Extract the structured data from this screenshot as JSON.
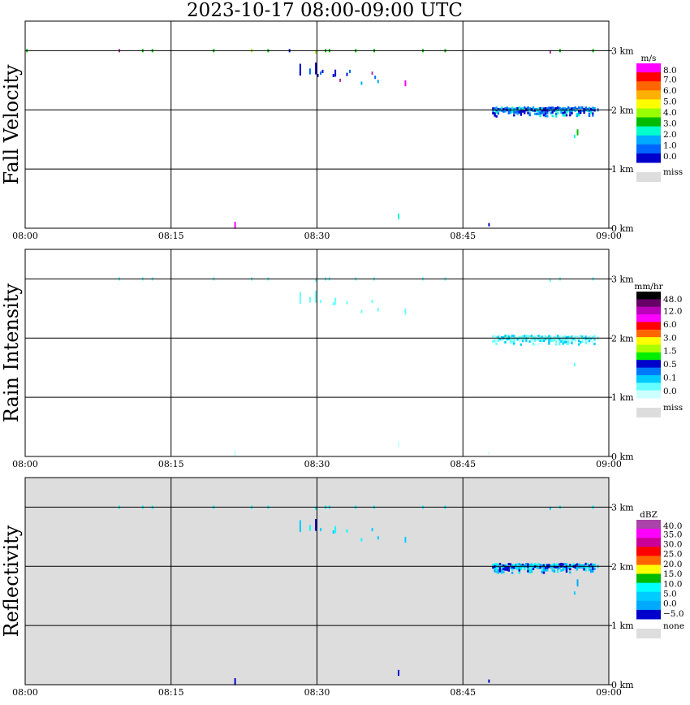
{
  "title": "2023-10-17   08:00-09:00 UTC",
  "x_ticks": [
    "08:00",
    "08:15",
    "08:30",
    "08:45",
    "09:00"
  ],
  "y_ticks": [
    "0 km",
    "1 km",
    "2 km",
    "3 km"
  ],
  "chart_data": [
    {
      "type": "heatmap",
      "ylabel": "Fall Velocity",
      "xlim": [
        "08:00",
        "09:00"
      ],
      "ylim_km": [
        0,
        3.5
      ],
      "grid": true,
      "background": "#ffffff",
      "legend": {
        "unit": "m/s",
        "labels": [
          "8.0",
          "7.0",
          "6.0",
          "5.0",
          "4.0",
          "3.0",
          "2.0",
          "1.0",
          "0.0"
        ],
        "colors": [
          "#ff00ff",
          "#ff0000",
          "#ff6600",
          "#ffb000",
          "#ffff00",
          "#99ff00",
          "#00bb00",
          "#00ffcc",
          "#00aaff",
          "#0066ff",
          "#0000cc"
        ],
        "miss_label": "miss",
        "miss_color": "#dddddd"
      },
      "cells": [
        {
          "t": 0.1,
          "z": 3.0,
          "v": "#00bb00"
        },
        {
          "t": 9.6,
          "z": 3.0,
          "v": "#aa3399"
        },
        {
          "t": 12.0,
          "z": 3.0,
          "v": "#00bb00"
        },
        {
          "t": 13.0,
          "z": 3.0,
          "v": "#00bb00"
        },
        {
          "t": 19.3,
          "z": 3.0,
          "v": "#00bb00"
        },
        {
          "t": 23.2,
          "z": 3.0,
          "v": "#99ff00"
        },
        {
          "t": 24.9,
          "z": 3.0,
          "v": "#00bb00"
        },
        {
          "t": 27.1,
          "z": 3.0,
          "v": "#0000cc"
        },
        {
          "t": 29.8,
          "z": 2.98,
          "v": "#99ff00"
        },
        {
          "t": 30.8,
          "z": 3.0,
          "v": "#00bb00"
        },
        {
          "t": 31.2,
          "z": 3.0,
          "v": "#00bb00"
        },
        {
          "t": 33.9,
          "z": 3.0,
          "v": "#00bb00"
        },
        {
          "t": 35.8,
          "z": 3.0,
          "v": "#00bb00"
        },
        {
          "t": 40.8,
          "z": 3.0,
          "v": "#00bb00"
        },
        {
          "t": 43.1,
          "z": 3.0,
          "v": "#00bb00"
        },
        {
          "t": 53.9,
          "z": 2.98,
          "v": "#aa3399"
        },
        {
          "t": 54.9,
          "z": 3.0,
          "v": "#00bb00"
        },
        {
          "t": 58.3,
          "z": 3.0,
          "v": "#00bb00"
        },
        {
          "t": 28.2,
          "z": 2.68,
          "v": "#0000cc",
          "h": 0.2
        },
        {
          "t": 28.2,
          "z": 2.62,
          "v": "#0000cc"
        },
        {
          "t": 29.2,
          "z": 2.65,
          "v": "#0066ff",
          "h": 0.1
        },
        {
          "t": 29.8,
          "z": 2.7,
          "v": "#0000cc",
          "h": 0.2
        },
        {
          "t": 30.0,
          "z": 2.58,
          "v": "#0000cc"
        },
        {
          "t": 30.3,
          "z": 2.62,
          "v": "#0066ff"
        },
        {
          "t": 30.5,
          "z": 2.65,
          "v": "#0000cc"
        },
        {
          "t": 31.6,
          "z": 2.58,
          "v": "#0000cc"
        },
        {
          "t": 31.8,
          "z": 2.62,
          "v": "#0000cc",
          "h": 0.12
        },
        {
          "t": 32.3,
          "z": 2.5,
          "v": "#aa3399"
        },
        {
          "t": 33.0,
          "z": 2.6,
          "v": "#0000cc"
        },
        {
          "t": 33.3,
          "z": 2.65,
          "v": "#0066ff"
        },
        {
          "t": 34.5,
          "z": 2.45,
          "v": "#00aaff"
        },
        {
          "t": 35.6,
          "z": 2.62,
          "v": "#aa3399"
        },
        {
          "t": 35.9,
          "z": 2.55,
          "v": "#0066ff"
        },
        {
          "t": 36.2,
          "z": 2.48,
          "v": "#00aaff"
        },
        {
          "t": 39.0,
          "z": 2.45,
          "v": "#ff00ff",
          "h": 0.1
        },
        {
          "t": 21.5,
          "z": 0.05,
          "v": "#ff00ff",
          "h": 0.12
        },
        {
          "t": 38.3,
          "z": 0.2,
          "v": "#00ffcc",
          "h": 0.1
        },
        {
          "t": 47.6,
          "z": 0.06,
          "v": "#0000cc"
        },
        {
          "t": 56.7,
          "z": 1.62,
          "v": "#00bb00",
          "h": 0.1
        },
        {
          "t": 56.4,
          "z": 1.55,
          "v": "#00ffcc"
        },
        {
          "t": 58.8,
          "z": 2.0,
          "v": "#0066ff"
        }
      ],
      "band": {
        "t0": 48.0,
        "t1": 58.6,
        "z": 2.0,
        "depth": 0.12,
        "colors": [
          "#0000cc",
          "#0066ff",
          "#00aaff",
          "#00ffcc"
        ]
      }
    },
    {
      "type": "heatmap",
      "ylabel": "Rain Intensity",
      "xlim": [
        "08:00",
        "09:00"
      ],
      "ylim_km": [
        0,
        3.5
      ],
      "grid": true,
      "background": "#ffffff",
      "legend": {
        "unit": "mm/hr",
        "labels": [
          "48.0",
          "12.0",
          "6.0",
          "3.0",
          "1.5",
          "0.5",
          "0.1",
          "0.0"
        ],
        "colors": [
          "#000000",
          "#660066",
          "#bb00bb",
          "#ff00ff",
          "#ff0000",
          "#ff6600",
          "#ffff00",
          "#aaff00",
          "#00ee00",
          "#0000cc",
          "#0077ff",
          "#00ccff",
          "#66ffff",
          "#ccffff"
        ],
        "miss_label": "miss",
        "miss_color": "#dddddd"
      },
      "cells": [
        {
          "t": 9.6,
          "z": 3.0,
          "v": "#66ffff"
        },
        {
          "t": 12.0,
          "z": 3.0,
          "v": "#66ffff"
        },
        {
          "t": 13.0,
          "z": 3.0,
          "v": "#66ffff"
        },
        {
          "t": 19.3,
          "z": 3.0,
          "v": "#66ffff"
        },
        {
          "t": 23.2,
          "z": 3.0,
          "v": "#66ffff"
        },
        {
          "t": 24.9,
          "z": 3.0,
          "v": "#66ffff"
        },
        {
          "t": 29.8,
          "z": 2.98,
          "v": "#66ffff"
        },
        {
          "t": 30.8,
          "z": 3.0,
          "v": "#66ffff"
        },
        {
          "t": 31.2,
          "z": 3.0,
          "v": "#66ffff"
        },
        {
          "t": 33.9,
          "z": 3.0,
          "v": "#66ffff"
        },
        {
          "t": 35.8,
          "z": 3.0,
          "v": "#66ffff"
        },
        {
          "t": 40.8,
          "z": 3.0,
          "v": "#66ffff"
        },
        {
          "t": 43.1,
          "z": 3.0,
          "v": "#66ffff"
        },
        {
          "t": 54.9,
          "z": 3.0,
          "v": "#66ffff"
        },
        {
          "t": 58.3,
          "z": 3.0,
          "v": "#66ffff"
        },
        {
          "t": 53.9,
          "z": 2.98,
          "v": "#66ffff"
        },
        {
          "t": 28.2,
          "z": 2.68,
          "v": "#66ffff",
          "h": 0.2
        },
        {
          "t": 29.2,
          "z": 2.65,
          "v": "#66ffff",
          "h": 0.1
        },
        {
          "t": 29.8,
          "z": 2.7,
          "v": "#66ffff",
          "h": 0.2
        },
        {
          "t": 30.3,
          "z": 2.62,
          "v": "#66ffff"
        },
        {
          "t": 31.6,
          "z": 2.58,
          "v": "#66ffff"
        },
        {
          "t": 31.8,
          "z": 2.62,
          "v": "#66ffff",
          "h": 0.12
        },
        {
          "t": 33.0,
          "z": 2.6,
          "v": "#66ffff"
        },
        {
          "t": 34.5,
          "z": 2.45,
          "v": "#66ffff"
        },
        {
          "t": 35.6,
          "z": 2.62,
          "v": "#66ffff"
        },
        {
          "t": 36.2,
          "z": 2.48,
          "v": "#66ffff"
        },
        {
          "t": 39.0,
          "z": 2.45,
          "v": "#66ffff",
          "h": 0.1
        },
        {
          "t": 21.5,
          "z": 0.05,
          "v": "#ccffff",
          "h": 0.12
        },
        {
          "t": 38.3,
          "z": 0.2,
          "v": "#ccffff",
          "h": 0.1
        },
        {
          "t": 47.6,
          "z": 0.06,
          "v": "#ccffff"
        },
        {
          "t": 56.4,
          "z": 1.55,
          "v": "#66ffff"
        },
        {
          "t": 58.8,
          "z": 2.0,
          "v": "#66ffff"
        }
      ],
      "band": {
        "t0": 48.0,
        "t1": 58.6,
        "z": 2.0,
        "depth": 0.12,
        "colors": [
          "#00ccff",
          "#66ffff",
          "#66ffff",
          "#ccffff"
        ]
      }
    },
    {
      "type": "heatmap",
      "ylabel": "Reflectivity",
      "xlim": [
        "08:00",
        "09:00"
      ],
      "ylim_km": [
        0,
        3.5
      ],
      "grid": true,
      "background": "#dddddd",
      "legend": {
        "unit": "dBZ",
        "labels": [
          "40.0",
          "35.0",
          "30.0",
          "25.0",
          "20.0",
          "15.0",
          "10.0",
          "5.0",
          "0.0",
          "−5.0"
        ],
        "colors": [
          "#aa44aa",
          "#ff00ff",
          "#cc0099",
          "#ff0000",
          "#ff6600",
          "#ffff00",
          "#00bb00",
          "#00ffff",
          "#00ccff",
          "#00aaff",
          "#0000cc"
        ],
        "miss_label": "none",
        "miss_color": "#dddddd"
      },
      "cells": [
        {
          "t": 9.6,
          "z": 3.0,
          "v": "#00ffff"
        },
        {
          "t": 12.0,
          "z": 3.0,
          "v": "#00ffff"
        },
        {
          "t": 13.0,
          "z": 3.0,
          "v": "#00ffff"
        },
        {
          "t": 19.3,
          "z": 3.0,
          "v": "#00ffff"
        },
        {
          "t": 23.2,
          "z": 3.0,
          "v": "#00ffff"
        },
        {
          "t": 24.9,
          "z": 3.0,
          "v": "#00ffff"
        },
        {
          "t": 29.8,
          "z": 2.98,
          "v": "#00ffff"
        },
        {
          "t": 30.8,
          "z": 3.0,
          "v": "#00ffff"
        },
        {
          "t": 31.2,
          "z": 3.0,
          "v": "#00ffff"
        },
        {
          "t": 33.9,
          "z": 3.0,
          "v": "#00ffff"
        },
        {
          "t": 35.8,
          "z": 3.0,
          "v": "#00ffff"
        },
        {
          "t": 40.8,
          "z": 3.0,
          "v": "#00ffff"
        },
        {
          "t": 43.1,
          "z": 3.0,
          "v": "#00ffff"
        },
        {
          "t": 54.9,
          "z": 3.0,
          "v": "#00ffff"
        },
        {
          "t": 58.3,
          "z": 3.0,
          "v": "#00ffff"
        },
        {
          "t": 53.9,
          "z": 2.98,
          "v": "#00ccff"
        },
        {
          "t": 28.2,
          "z": 2.68,
          "v": "#00ccff",
          "h": 0.2
        },
        {
          "t": 29.2,
          "z": 2.65,
          "v": "#00ffff",
          "h": 0.1
        },
        {
          "t": 29.8,
          "z": 2.7,
          "v": "#0000cc",
          "h": 0.2
        },
        {
          "t": 30.3,
          "z": 2.62,
          "v": "#00ccff"
        },
        {
          "t": 31.6,
          "z": 2.58,
          "v": "#00ccff"
        },
        {
          "t": 31.8,
          "z": 2.62,
          "v": "#00ffff",
          "h": 0.12
        },
        {
          "t": 33.0,
          "z": 2.6,
          "v": "#00ffff"
        },
        {
          "t": 34.5,
          "z": 2.45,
          "v": "#00ffff"
        },
        {
          "t": 35.6,
          "z": 2.62,
          "v": "#00ccff"
        },
        {
          "t": 36.2,
          "z": 2.48,
          "v": "#00ccff"
        },
        {
          "t": 39.0,
          "z": 2.45,
          "v": "#00ccff",
          "h": 0.1
        },
        {
          "t": 21.5,
          "z": 0.05,
          "v": "#0000cc",
          "h": 0.12
        },
        {
          "t": 38.3,
          "z": 0.2,
          "v": "#0000cc",
          "h": 0.1
        },
        {
          "t": 47.6,
          "z": 0.06,
          "v": "#0000cc"
        },
        {
          "t": 56.4,
          "z": 1.55,
          "v": "#00ccff"
        },
        {
          "t": 56.7,
          "z": 1.72,
          "v": "#00aaff",
          "h": 0.12
        },
        {
          "t": 58.8,
          "z": 2.0,
          "v": "#00ccff"
        }
      ],
      "band": {
        "t0": 48.0,
        "t1": 58.6,
        "z": 2.0,
        "depth": 0.12,
        "colors": [
          "#0000cc",
          "#00aaff",
          "#00ccff",
          "#00ffff"
        ]
      }
    }
  ]
}
